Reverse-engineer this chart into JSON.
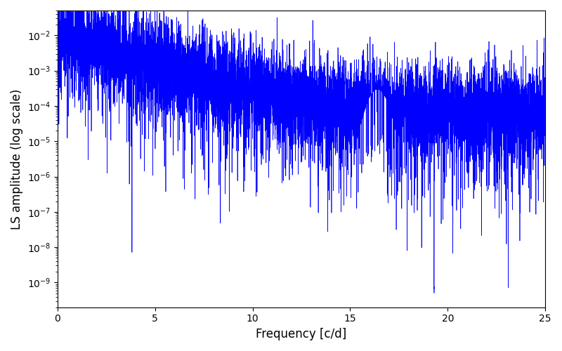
{
  "title": "",
  "xlabel": "Frequency [c/d]",
  "ylabel": "LS amplitude (log scale)",
  "xlim": [
    0,
    25
  ],
  "ylim_log": [
    -9.7,
    -1.3
  ],
  "line_color": "#0000ff",
  "line_width": 0.5,
  "background_color": "#ffffff",
  "figsize": [
    8.0,
    5.0
  ],
  "dpi": 100,
  "seed": 12345,
  "n_points": 8000,
  "freq_max": 25.0,
  "tick_fontsize": 10,
  "label_fontsize": 12
}
